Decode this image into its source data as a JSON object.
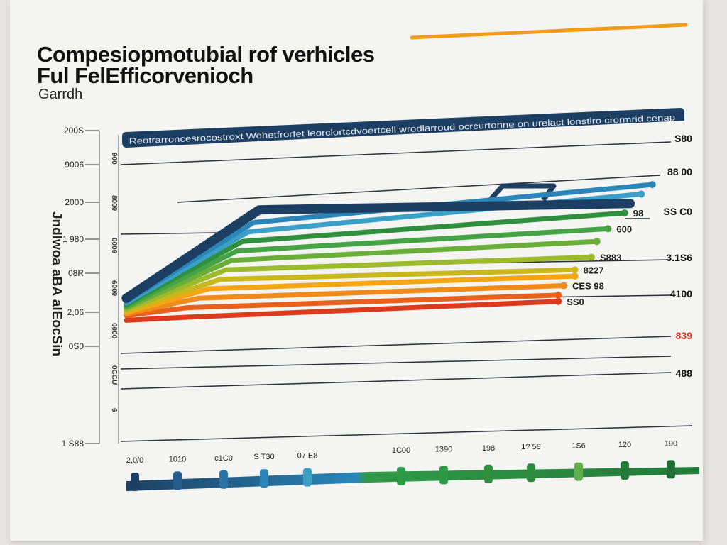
{
  "chart_data": {
    "type": "line",
    "title": "Compesiopmotubial rof verhicles",
    "title_line2": "Ful FelEfficorvenioch",
    "subtitle": "Garrdh",
    "banner": "Reotrarroncesrocostroxt Wohetfrorfet leorclortcdvoertcell wrodlarroud ocrcurtonne on urelact lonstiro crormrid cenap",
    "ylabel": "Jndlwoa aBA alEocSin",
    "xlim": [
      0,
      10
    ],
    "ylim": [
      0,
      100
    ],
    "grid": false,
    "y_tick_labels": [
      "200S",
      "9006",
      "2000",
      "1 980",
      "08R",
      "2,06",
      "0S0",
      "1 S88"
    ],
    "inner_column_labels": [
      "900",
      "8000",
      "0009",
      "6000",
      "0000",
      "0CCU",
      "6"
    ],
    "right_labels": [
      {
        "text": "S80",
        "color": "#111111"
      },
      {
        "text": "88 00",
        "color": "#111111"
      },
      {
        "text": "SS C0",
        "color": "#111111"
      },
      {
        "text": "3.1S6",
        "color": "#111111"
      },
      {
        "text": "4100",
        "color": "#111111"
      },
      {
        "text": "839",
        "color": "#d9351c"
      },
      {
        "text": "488",
        "color": "#111111"
      }
    ],
    "series": [
      {
        "color": "#1d3f63",
        "points": [
          [
            0.1,
            46
          ],
          [
            2.5,
            74
          ],
          [
            9.2,
            76
          ]
        ],
        "end_label": ""
      },
      {
        "color": "#2a86b8",
        "points": [
          [
            0.1,
            45
          ],
          [
            2.4,
            70
          ],
          [
            9.6,
            82
          ]
        ],
        "end_label": ""
      },
      {
        "color": "#3aa0c8",
        "points": [
          [
            0.1,
            44.5
          ],
          [
            2.3,
            67
          ],
          [
            9.4,
            79
          ]
        ],
        "end_label": ""
      },
      {
        "color": "#2f8f3e",
        "points": [
          [
            0.1,
            44
          ],
          [
            2.2,
            64
          ],
          [
            9.1,
            73
          ]
        ],
        "end_label": "98"
      },
      {
        "color": "#45a346",
        "points": [
          [
            0.1,
            43.5
          ],
          [
            2.1,
            61
          ],
          [
            8.8,
            68
          ]
        ],
        "end_label": "600"
      },
      {
        "color": "#6aae3a",
        "points": [
          [
            0.1,
            43
          ],
          [
            2.0,
            58
          ],
          [
            8.6,
            64
          ]
        ],
        "end_label": ""
      },
      {
        "color": "#9cba2c",
        "points": [
          [
            0.1,
            42.5
          ],
          [
            1.9,
            55
          ],
          [
            8.5,
            59
          ]
        ],
        "end_label": "S883"
      },
      {
        "color": "#c8b81e",
        "points": [
          [
            0.1,
            42
          ],
          [
            1.8,
            52
          ],
          [
            8.2,
            55
          ]
        ],
        "end_label": "8227"
      },
      {
        "color": "#f4a514",
        "points": [
          [
            0.1,
            41.5
          ],
          [
            1.6,
            49
          ],
          [
            8.2,
            53
          ]
        ],
        "end_label": ""
      },
      {
        "color": "#f08a1a",
        "points": [
          [
            0.1,
            41
          ],
          [
            1.4,
            46
          ],
          [
            8.0,
            50
          ]
        ],
        "end_label": "CES 98"
      },
      {
        "color": "#e8601c",
        "points": [
          [
            0.1,
            40.5
          ],
          [
            1.2,
            43
          ],
          [
            7.9,
            47
          ]
        ],
        "end_label": ""
      },
      {
        "color": "#dc3a1c",
        "points": [
          [
            0.1,
            39
          ],
          [
            1.2,
            40
          ],
          [
            7.9,
            45
          ]
        ],
        "end_label": "SS0"
      }
    ],
    "timeline_labels": [
      "2,0/0",
      "1010",
      "c1C0",
      "S T30",
      "07 E8",
      "1C00",
      "1390",
      "198",
      "1? 58",
      "1S6",
      "120",
      "190"
    ],
    "colors": {
      "navy": "#1d3f63",
      "accent_orange": "#f29a1c",
      "timeline_blue": "#2a86b8",
      "timeline_green": "#2f9a46"
    }
  }
}
